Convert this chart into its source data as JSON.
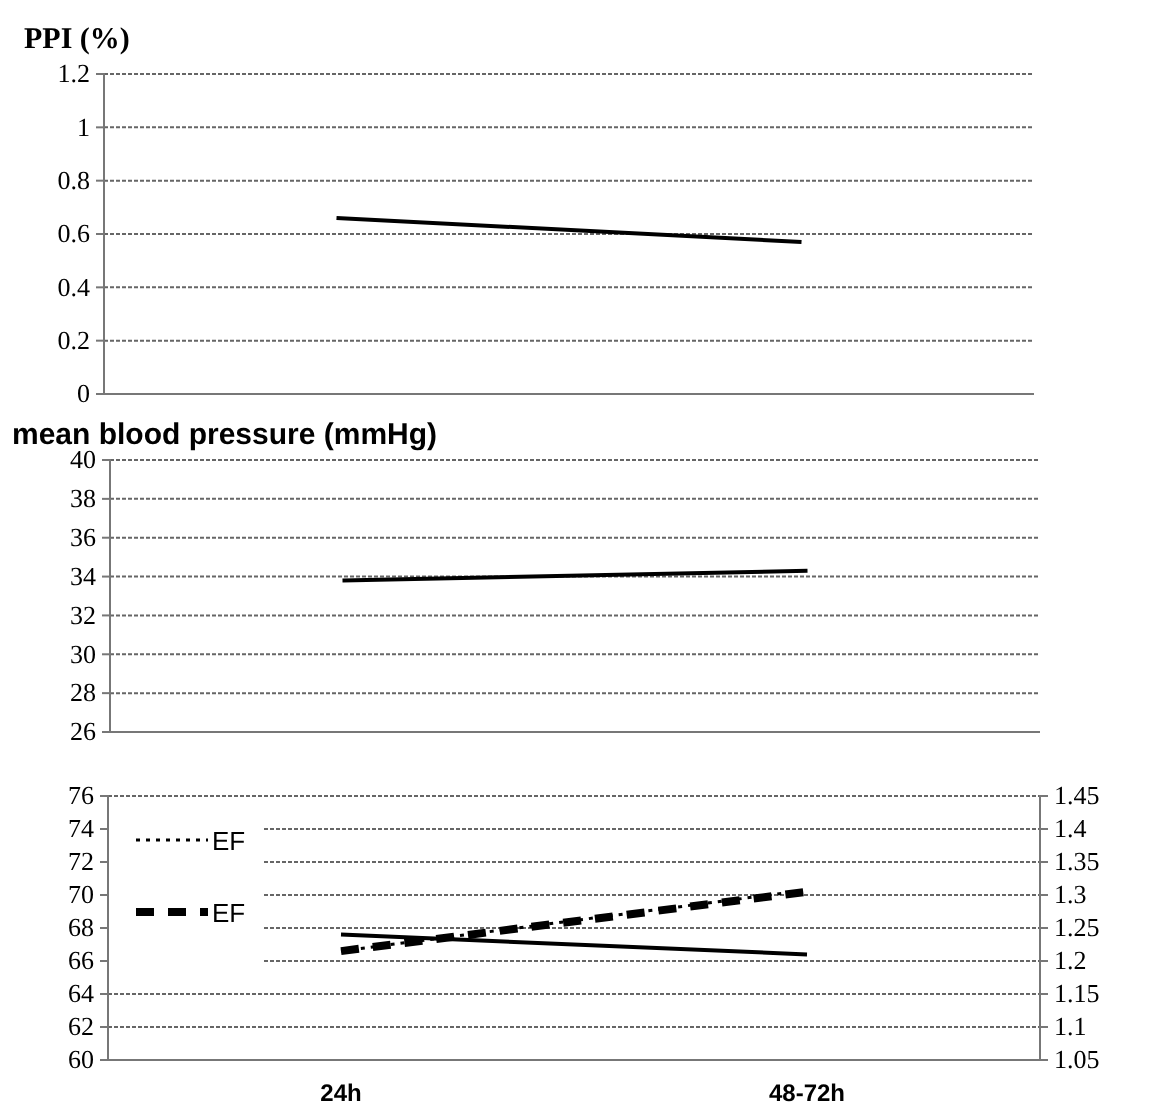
{
  "chart_data": [
    {
      "type": "line",
      "title": "PPI (%)",
      "categories": [
        null,
        null
      ],
      "tick_labels": "y",
      "grid": "y",
      "ylim": [
        0,
        1.2
      ],
      "yticks": [
        0,
        0.2,
        0.4,
        0.6,
        0.8,
        1,
        1.2
      ],
      "series": [
        {
          "color": "#000000",
          "values": [
            0.66,
            0.57
          ]
        }
      ]
    },
    {
      "type": "line",
      "title": "mean blood pressure (mmHg)",
      "categories": [
        null,
        null
      ],
      "tick_labels": "y",
      "grid": "y",
      "ylim": [
        26,
        40
      ],
      "yticks": [
        26,
        28,
        30,
        32,
        34,
        36,
        38,
        40
      ],
      "series": [
        {
          "color": "#000000",
          "values": [
            33.8,
            34.3
          ]
        }
      ]
    },
    {
      "type": "line",
      "categories": [
        "24h",
        "48-72h"
      ],
      "grid": "y",
      "legend": "top left",
      "ylim": [
        60,
        76
      ],
      "yticks": [
        60,
        62,
        64,
        66,
        68,
        70,
        72,
        74,
        76
      ],
      "y2lim": [
        1.05,
        1.45
      ],
      "y2ticks": [
        1.05,
        1.1,
        1.15,
        1.2,
        1.25,
        1.3,
        1.35,
        1.4,
        1.45
      ],
      "series": [
        {
          "color": "#000000",
          "values": [
            67.6,
            66.4
          ],
          "line_style": "solid"
        },
        {
          "name": "EF",
          "color": "#000000",
          "values": [
            66.6,
            70.3
          ],
          "line_style": "dotted"
        },
        {
          "name": "EF",
          "color": "#000000",
          "axis": "y2",
          "values": [
            1.215,
            1.305
          ],
          "line_style": "dashed"
        }
      ]
    }
  ]
}
